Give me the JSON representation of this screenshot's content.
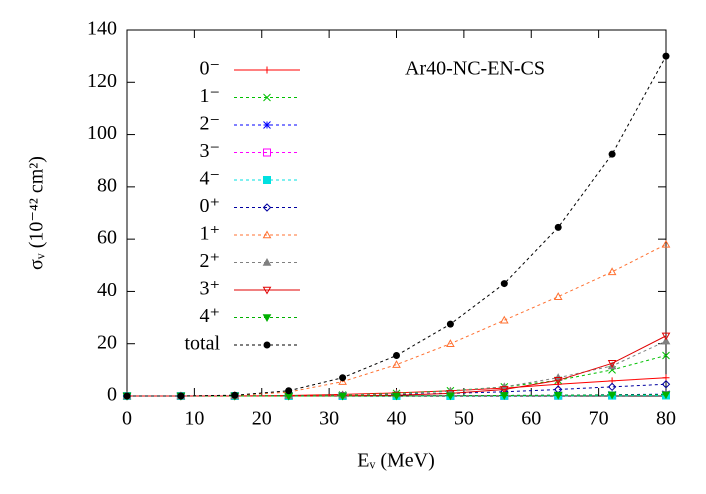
{
  "chart_data": {
    "type": "line",
    "xlabel": "Eᵥ (MeV)",
    "ylabel": "σᵥ (10⁻⁴² cm²)",
    "annotation": "Ar40-NC-EN-CS",
    "xlim": [
      0,
      80
    ],
    "xticks": [
      0,
      10,
      20,
      30,
      40,
      50,
      60,
      70,
      80
    ],
    "ylim": [
      0,
      140
    ],
    "yticks": [
      0,
      20,
      40,
      60,
      80,
      100,
      120,
      140
    ],
    "x": [
      0,
      8,
      16,
      24,
      32,
      40,
      48,
      56,
      64,
      72,
      80
    ],
    "series": [
      {
        "name": "0⁻",
        "color": "#ff0000",
        "marker": "plus",
        "dashed": false,
        "values": [
          0,
          0,
          0,
          0.2,
          0.6,
          1.2,
          2,
          3,
          4.5,
          5.8,
          7
        ]
      },
      {
        "name": "1⁻",
        "color": "#00c000",
        "marker": "cross",
        "dashed": true,
        "values": [
          0,
          0,
          0,
          0.1,
          0.4,
          1,
          2,
          3.5,
          6,
          10,
          15.5
        ]
      },
      {
        "name": "2⁻",
        "color": "#0000ff",
        "marker": "star",
        "dashed": true,
        "values": [
          0,
          0,
          0,
          0,
          0,
          0.05,
          0.1,
          0.2,
          0.3,
          0.5,
          0.7
        ]
      },
      {
        "name": "3⁻",
        "color": "#ff00ff",
        "marker": "square",
        "dashed": true,
        "values": [
          0,
          0,
          0,
          0,
          0,
          0,
          0.05,
          0.1,
          0.15,
          0.2,
          0.3
        ]
      },
      {
        "name": "4⁻",
        "color": "#00e0e0",
        "marker": "filled-square",
        "dashed": true,
        "values": [
          0,
          0,
          0,
          0,
          0,
          0,
          0,
          0.05,
          0.1,
          0.15,
          0.2
        ]
      },
      {
        "name": "0⁺",
        "color": "#0000a0",
        "marker": "diamond",
        "dashed": true,
        "values": [
          0,
          0,
          0,
          0.1,
          0.3,
          0.6,
          1,
          1.6,
          2.5,
          3.5,
          4.5
        ]
      },
      {
        "name": "1⁺",
        "color": "#ff7030",
        "marker": "triangle",
        "dashed": true,
        "values": [
          0,
          0,
          0.2,
          1.5,
          5.5,
          12,
          20,
          29,
          38,
          47.5,
          58
        ]
      },
      {
        "name": "2⁺",
        "color": "#808080",
        "marker": "filled-triangle",
        "dashed": true,
        "values": [
          0,
          0,
          0,
          0.1,
          0.3,
          0.8,
          1.8,
          3.5,
          7,
          11.5,
          21
        ]
      },
      {
        "name": "3⁺",
        "color": "#e00000",
        "marker": "inv-triangle",
        "dashed": false,
        "values": [
          0,
          0,
          0,
          0,
          0.1,
          0.3,
          1,
          2.5,
          6,
          12.5,
          23
        ]
      },
      {
        "name": "4⁺",
        "color": "#00b000",
        "marker": "filled-inv-triangle",
        "dashed": true,
        "values": [
          0,
          0,
          0,
          0,
          0,
          0.05,
          0.1,
          0.2,
          0.3,
          0.4,
          0.5
        ]
      },
      {
        "name": "total",
        "color": "#000000",
        "marker": "filled-circle",
        "dashed": true,
        "values": [
          0,
          0,
          0.3,
          2,
          7,
          15.5,
          27.5,
          43,
          64.5,
          92.5,
          130
        ]
      }
    ]
  }
}
